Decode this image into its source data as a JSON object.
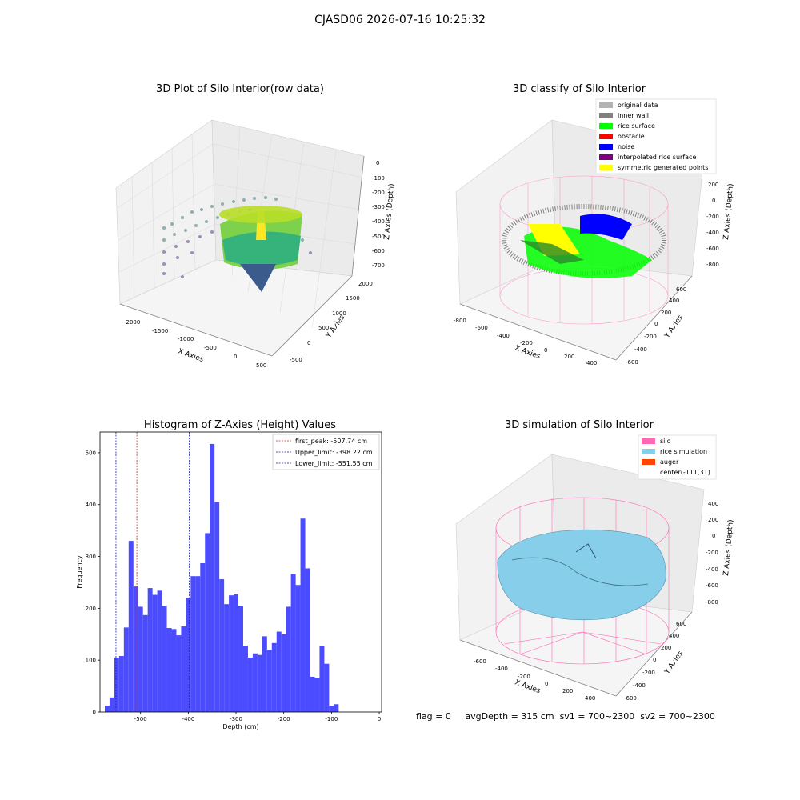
{
  "suptitle": "CJASD06 2026-07-16 10:25:32",
  "footer": {
    "flag": "flag = 0",
    "avg_depth": "avgDepth = 315 cm",
    "sv1": "sv1 = 700~2300",
    "sv2": "sv2 = 700~2300"
  },
  "colors": {
    "hist_bar": "#4b4bff",
    "first_peak_line": "#d62728",
    "limit_line": "#1f1fb4",
    "silo_wire": "#ff69b4",
    "rice_sim": "#87ceeb",
    "rice_surface": "#00ff00",
    "noise": "#0000ff",
    "symmetric": "#ffff00"
  },
  "panels": {
    "raw": {
      "title": "3D Plot of Silo Interior(row data)",
      "xlabel": "X Axies",
      "ylabel": "Y Axies",
      "zlabel": "Z Axies (Depth)",
      "xticks": [
        "-2000",
        "-1500",
        "-1000",
        "-500",
        "0",
        "500"
      ],
      "yticks": [
        "-500",
        "0",
        "500",
        "1000",
        "1500",
        "2000"
      ],
      "zticks": [
        "0",
        "-100",
        "-200",
        "-300",
        "-400",
        "-500",
        "-600",
        "-700"
      ]
    },
    "classify": {
      "title": "3D classify of Silo Interior",
      "xlabel": "X Axies",
      "ylabel": "Y Axies",
      "zlabel": "Z Axies (Depth)",
      "xticks": [
        "-800",
        "-600",
        "-400",
        "-200",
        "0",
        "200",
        "400"
      ],
      "yticks": [
        "-600",
        "-400",
        "-200",
        "0",
        "200",
        "400",
        "600"
      ],
      "zticks": [
        "200",
        "0",
        "-200",
        "-400",
        "-600",
        "-800"
      ],
      "legend": [
        {
          "label": "original data",
          "color": "#b3b3b3"
        },
        {
          "label": "inner wall",
          "color": "#808080"
        },
        {
          "label": "rice surface",
          "color": "#00ff00"
        },
        {
          "label": "obstacle",
          "color": "#ff0000"
        },
        {
          "label": "noise",
          "color": "#0000ff"
        },
        {
          "label": "interpolated rice surface",
          "color": "#800080"
        },
        {
          "label": "symmetric generated points",
          "color": "#ffff00"
        }
      ]
    },
    "simulation": {
      "title": "3D simulation of Silo Interior",
      "xlabel": "X Axies",
      "ylabel": "Y Axies",
      "zlabel": "Z Axies (Depth)",
      "xticks": [
        "-600",
        "-400",
        "-200",
        "0",
        "200",
        "400"
      ],
      "yticks": [
        "-600",
        "-400",
        "-200",
        "0",
        "200",
        "400",
        "600"
      ],
      "zticks": [
        "400",
        "200",
        "0",
        "-200",
        "-400",
        "-600",
        "-800"
      ],
      "legend": [
        {
          "label": "silo",
          "color": "#ff69b4"
        },
        {
          "label": "rice simulation",
          "color": "#87ceeb"
        },
        {
          "label": "auger",
          "color": "#ff4500"
        },
        {
          "label": "center(-111,31)",
          "color": ""
        }
      ]
    }
  },
  "chart_data": {
    "type": "bar",
    "title": "Histogram of Z-Axies (Height) Values",
    "xlabel": "Depth (cm)",
    "ylabel": "Frequency",
    "xlim": [
      -585,
      5
    ],
    "ylim": [
      0,
      540
    ],
    "xticks": [
      -500,
      -400,
      -300,
      -200,
      -100,
      0
    ],
    "yticks": [
      0,
      100,
      200,
      300,
      400,
      500
    ],
    "bin_start": -575,
    "bin_width": 10,
    "values": [
      12,
      28,
      105,
      108,
      163,
      330,
      242,
      203,
      187,
      239,
      226,
      234,
      205,
      162,
      160,
      148,
      165,
      220,
      262,
      262,
      287,
      345,
      517,
      405,
      256,
      208,
      225,
      227,
      205,
      128,
      105,
      113,
      110,
      146,
      120,
      133,
      155,
      150,
      203,
      266,
      245,
      373,
      277,
      68,
      65,
      127,
      93,
      12,
      15
    ],
    "lines": [
      {
        "label": "first_peak: -507.74 cm",
        "x": -507.74,
        "color": "#d62728"
      },
      {
        "label": "Upper_limit: -398.22 cm",
        "x": -398.22,
        "color": "#1f1fb4"
      },
      {
        "label": "Lower_limit: -551.55 cm",
        "x": -551.55,
        "color": "#1f1fb4"
      }
    ]
  }
}
